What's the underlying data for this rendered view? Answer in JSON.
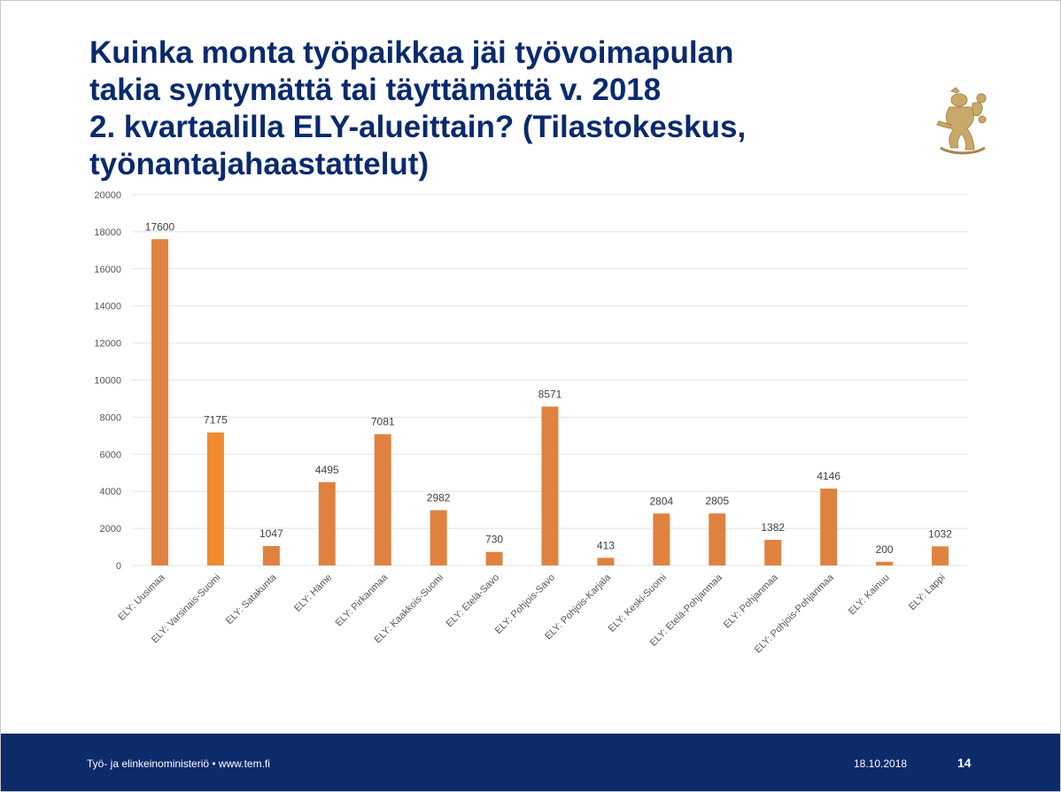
{
  "slide": {
    "title_lines": [
      "Kuinka monta työpaikkaa jäi työvoimapulan",
      "takia syntymättä tai täyttämättä v. 2018",
      "2. kvartaalilla ELY-alueittain? (Tilastokeskus,",
      "työnantajahaastattelut)"
    ],
    "logo_icon": "lion-coat-of-arms-icon",
    "footer": {
      "org": "Työ- ja elinkeinoministeriö • www.tem.fi",
      "date": "18.10.2018",
      "page": "14"
    }
  },
  "colors": {
    "title": "#0a2a6e",
    "bar": "#e0823f",
    "bar_highlight": "#f28a2e",
    "footer_bg": "#0d2a6b",
    "gridline": "#e3e3e3",
    "logo": "#c9a96a"
  },
  "chart_data": {
    "type": "bar",
    "title": "",
    "xlabel": "",
    "ylabel": "",
    "ylim": [
      0,
      20000
    ],
    "yticks": [
      0,
      2000,
      4000,
      6000,
      8000,
      10000,
      12000,
      14000,
      16000,
      18000,
      20000
    ],
    "grid": true,
    "highlight_index": 1,
    "categories": [
      "ELY: Uusimaa",
      "ELY: Varsinais-Suomi",
      "ELY: Satakunta",
      "ELY: Häme",
      "ELY: Pirkanmaa",
      "ELY: Kaakkois-Suomi",
      "ELY: Etelä-Savo",
      "ELY: Pohjois-Savo",
      "ELY: Pohjois-Karjala",
      "ELY: Keski-Suomi",
      "ELY: Etelä-Pohjanmaa",
      "ELY: Pohjanmaa",
      "ELY: Pohjois-Pohjanmaa",
      "ELY: Kainuu",
      "ELY: Lappi"
    ],
    "values": [
      17600,
      7175,
      1047,
      4495,
      7081,
      2982,
      730,
      8571,
      413,
      2804,
      2805,
      1382,
      4146,
      200,
      1032
    ]
  }
}
